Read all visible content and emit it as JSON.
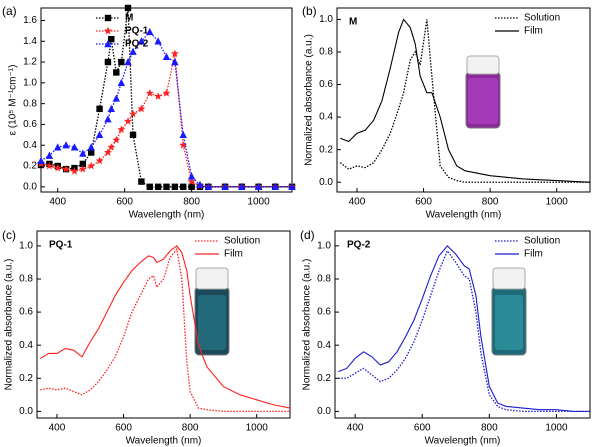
{
  "chart_data": [
    {
      "type": "line",
      "label": "(a)",
      "x_label": "Wavelength (nm)",
      "y_label": "ε (10⁵ M⁻¹cm⁻¹)",
      "xlim": [
        350,
        1100
      ],
      "xticks": [
        400,
        600,
        800,
        1000
      ],
      "ylim": [
        -0.05,
        1.72
      ],
      "yticks": [
        {
          "value": 0,
          "label": "0.0"
        },
        0.2,
        0.4,
        0.6,
        0.8,
        {
          "value": 1,
          "label": "1.0"
        },
        1.2,
        1.4,
        1.6
      ],
      "legend": "upper left",
      "x": [
        350,
        375,
        400,
        425,
        450,
        475,
        500,
        525,
        550,
        560,
        575,
        590,
        610,
        625,
        650,
        675,
        700,
        725,
        750,
        775,
        800,
        825,
        850,
        900,
        950,
        1000,
        1050,
        1100
      ],
      "series": [
        {
          "name": "M",
          "color": "#000000",
          "linestyle": "dotted",
          "marker": "square",
          "values": [
            0.21,
            0.22,
            0.2,
            0.17,
            0.18,
            0.22,
            0.33,
            0.75,
            1.2,
            1.42,
            1.1,
            1.2,
            1.72,
            0.5,
            0.05,
            0,
            0,
            0,
            0,
            0,
            0,
            0,
            0,
            0,
            0,
            0,
            0,
            0
          ]
        },
        {
          "name": "PQ-1",
          "color": "#ff2020",
          "linestyle": "dotted",
          "marker": "star",
          "values": [
            0.22,
            0.2,
            0.18,
            0.17,
            0.15,
            0.17,
            0.2,
            0.25,
            0.33,
            0.38,
            0.45,
            0.55,
            0.63,
            0.7,
            0.75,
            0.9,
            0.87,
            0.9,
            1.28,
            0.4,
            0.05,
            0.01,
            0,
            0,
            0,
            0,
            0,
            0
          ]
        },
        {
          "name": "PQ-2",
          "color": "#1a1aff",
          "linestyle": "dotted",
          "marker": "triangle",
          "values": [
            0.25,
            0.3,
            0.38,
            0.4,
            0.38,
            0.32,
            0.38,
            0.5,
            0.65,
            0.75,
            0.85,
            1.0,
            1.2,
            1.3,
            1.4,
            1.49,
            1.4,
            1.25,
            1.2,
            0.5,
            0.1,
            0.02,
            0,
            0,
            0,
            0,
            0,
            0
          ]
        }
      ]
    },
    {
      "type": "line",
      "label": "(b)",
      "annotation": "M",
      "x_label": "Wavelength (nm)",
      "y_label": "Normalized absorbance (a.u.)",
      "xlim": [
        340,
        1100
      ],
      "xticks": [
        400,
        600,
        800,
        1000
      ],
      "ylim": [
        -0.06,
        1.07
      ],
      "yticks": [
        {
          "value": 0,
          "label": "0.0"
        },
        0.2,
        0.4,
        0.6,
        0.8,
        {
          "value": 1,
          "label": "1.0"
        }
      ],
      "legend": "upper right",
      "x": [
        350,
        375,
        400,
        425,
        450,
        475,
        500,
        525,
        540,
        560,
        575,
        590,
        610,
        625,
        650,
        675,
        700,
        725,
        750,
        775,
        800,
        850,
        900,
        950,
        1000,
        1050,
        1100
      ],
      "series": [
        {
          "name": "Solution",
          "color": "#000000",
          "linestyle": "dotted",
          "values": [
            0.12,
            0.08,
            0.1,
            0.09,
            0.12,
            0.2,
            0.3,
            0.45,
            0.55,
            0.75,
            0.8,
            0.72,
            1.0,
            0.65,
            0.1,
            0.03,
            0.01,
            0,
            0,
            0,
            0,
            0,
            0,
            0,
            0,
            0,
            0
          ]
        },
        {
          "name": "Film",
          "color": "#000000",
          "linestyle": "solid",
          "values": [
            0.27,
            0.25,
            0.3,
            0.32,
            0.38,
            0.5,
            0.7,
            0.92,
            1.0,
            0.95,
            0.85,
            0.65,
            0.55,
            0.55,
            0.4,
            0.2,
            0.1,
            0.07,
            0.06,
            0.05,
            0.04,
            0.03,
            0.02,
            0.015,
            0.01,
            0.005,
            0
          ]
        }
      ]
    },
    {
      "type": "line",
      "label": "(c)",
      "annotation": "PQ-1",
      "x_label": "Wavelength (nm)",
      "y_label": "Normalized absorbance (a.u.)",
      "xlim": [
        340,
        1100
      ],
      "xticks": [
        400,
        600,
        800,
        1000
      ],
      "ylim": [
        -0.04,
        1.09
      ],
      "yticks": [
        {
          "value": 0,
          "label": "0.0"
        },
        0.2,
        0.4,
        0.6,
        0.8,
        {
          "value": 1,
          "label": "1.0"
        }
      ],
      "legend": "upper right",
      "x": [
        350,
        375,
        400,
        425,
        450,
        475,
        500,
        525,
        550,
        575,
        600,
        625,
        650,
        675,
        690,
        700,
        720,
        740,
        760,
        775,
        790,
        800,
        825,
        850,
        900,
        950,
        1000,
        1050,
        1100
      ],
      "series": [
        {
          "name": "Solution",
          "color": "#ff2020",
          "linestyle": "dotted",
          "values": [
            0.13,
            0.14,
            0.13,
            0.14,
            0.12,
            0.1,
            0.13,
            0.18,
            0.25,
            0.33,
            0.45,
            0.6,
            0.7,
            0.8,
            0.82,
            0.75,
            0.8,
            0.93,
            0.98,
            0.8,
            0.3,
            0.12,
            0.02,
            0.01,
            0,
            0,
            0,
            0,
            0
          ]
        },
        {
          "name": "Film",
          "color": "#ff2020",
          "linestyle": "solid",
          "values": [
            0.32,
            0.35,
            0.35,
            0.38,
            0.37,
            0.33,
            0.42,
            0.5,
            0.6,
            0.7,
            0.78,
            0.85,
            0.9,
            0.94,
            0.93,
            0.9,
            0.92,
            0.97,
            1.0,
            0.96,
            0.85,
            0.7,
            0.4,
            0.27,
            0.15,
            0.1,
            0.07,
            0.04,
            0.02
          ]
        }
      ]
    },
    {
      "type": "line",
      "label": "(d)",
      "annotation": "PQ-2",
      "x_label": "Wavelength (nm)",
      "y_label": "Normalized absorbance (a.u.)",
      "xlim": [
        340,
        1100
      ],
      "xticks": [
        400,
        600,
        800,
        1000
      ],
      "ylim": [
        -0.04,
        1.09
      ],
      "yticks": [
        {
          "value": 0,
          "label": "0.0"
        },
        0.2,
        0.4,
        0.6,
        0.8,
        {
          "value": 1,
          "label": "1.0"
        }
      ],
      "legend": "upper right",
      "x": [
        350,
        375,
        400,
        425,
        450,
        475,
        500,
        525,
        550,
        575,
        600,
        625,
        650,
        675,
        700,
        725,
        740,
        760,
        775,
        800,
        825,
        850,
        900,
        950,
        1000,
        1050,
        1100
      ],
      "series": [
        {
          "name": "Solution",
          "color": "#1a1acc",
          "linestyle": "dotted",
          "values": [
            0.2,
            0.2,
            0.23,
            0.26,
            0.22,
            0.18,
            0.2,
            0.25,
            0.32,
            0.42,
            0.55,
            0.7,
            0.85,
            0.97,
            0.9,
            0.82,
            0.8,
            0.6,
            0.35,
            0.1,
            0.03,
            0.01,
            0,
            0,
            0,
            0,
            0
          ]
        },
        {
          "name": "Film",
          "color": "#1a1acc",
          "linestyle": "solid",
          "values": [
            0.24,
            0.26,
            0.32,
            0.36,
            0.33,
            0.28,
            0.3,
            0.36,
            0.45,
            0.55,
            0.68,
            0.82,
            0.94,
            1.0,
            0.95,
            0.88,
            0.86,
            0.7,
            0.45,
            0.15,
            0.05,
            0.03,
            0.02,
            0.01,
            0.01,
            0,
            0
          ]
        }
      ]
    }
  ]
}
